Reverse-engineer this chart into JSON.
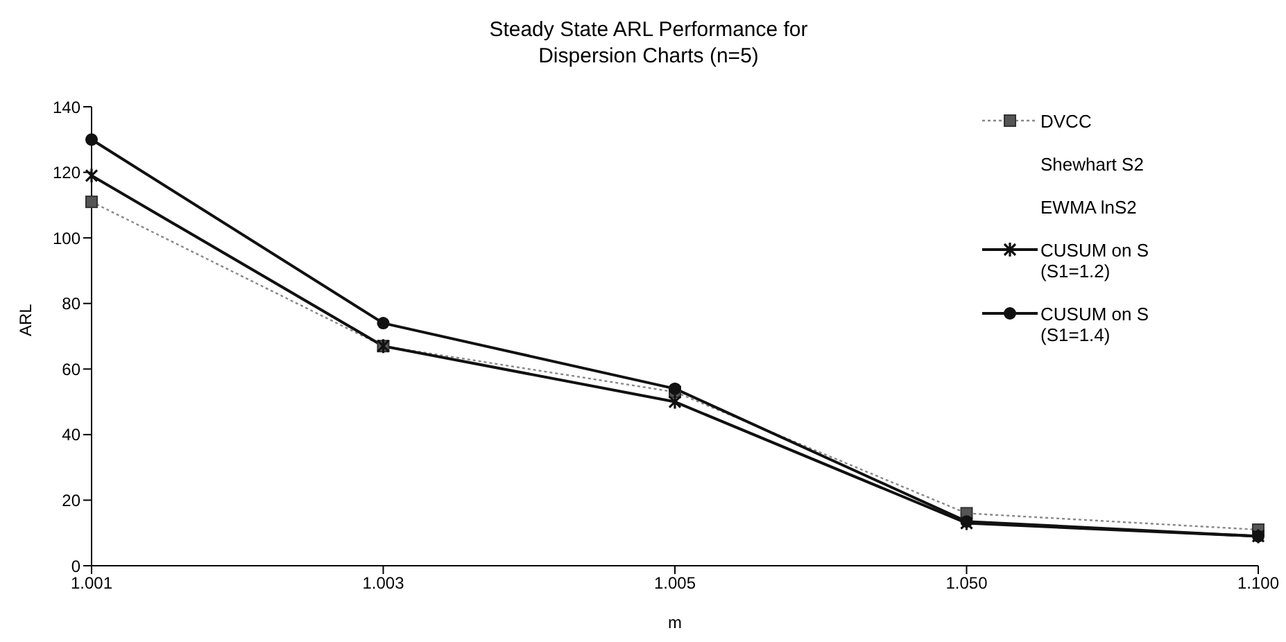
{
  "chart_data": {
    "type": "line",
    "title": "Steady State ARL Performance for\nDispersion Charts (n=5)",
    "xlabel": "m",
    "ylabel": "ARL",
    "categories": [
      "1.001",
      "1.003",
      "1.005",
      "1.050",
      "1.100"
    ],
    "series": [
      {
        "name": "DVCC",
        "color": "#888888",
        "values": [
          111,
          67,
          53,
          16,
          11
        ],
        "marker": "square",
        "line_style": "dotted"
      },
      {
        "name": "Shewhart S2",
        "values": [
          null,
          null,
          null,
          null,
          null
        ],
        "marker": "none"
      },
      {
        "name": "EWMA lnS2",
        "values": [
          null,
          null,
          null,
          null,
          null
        ],
        "marker": "none"
      },
      {
        "name": "CUSUM on S (S1=1.2)",
        "color": "#111111",
        "values": [
          119,
          67,
          50,
          13,
          9
        ],
        "marker": "cross",
        "line_style": "solid"
      },
      {
        "name": "CUSUM on S (S1=1.4)",
        "color": "#111111",
        "values": [
          130,
          74,
          54,
          13.5,
          9
        ],
        "marker": "circle",
        "line_style": "solid"
      }
    ],
    "ylim": [
      0,
      140
    ],
    "yticks": [
      0,
      20,
      40,
      60,
      80,
      100,
      120,
      140
    ],
    "grid": false,
    "legend": "top right"
  }
}
